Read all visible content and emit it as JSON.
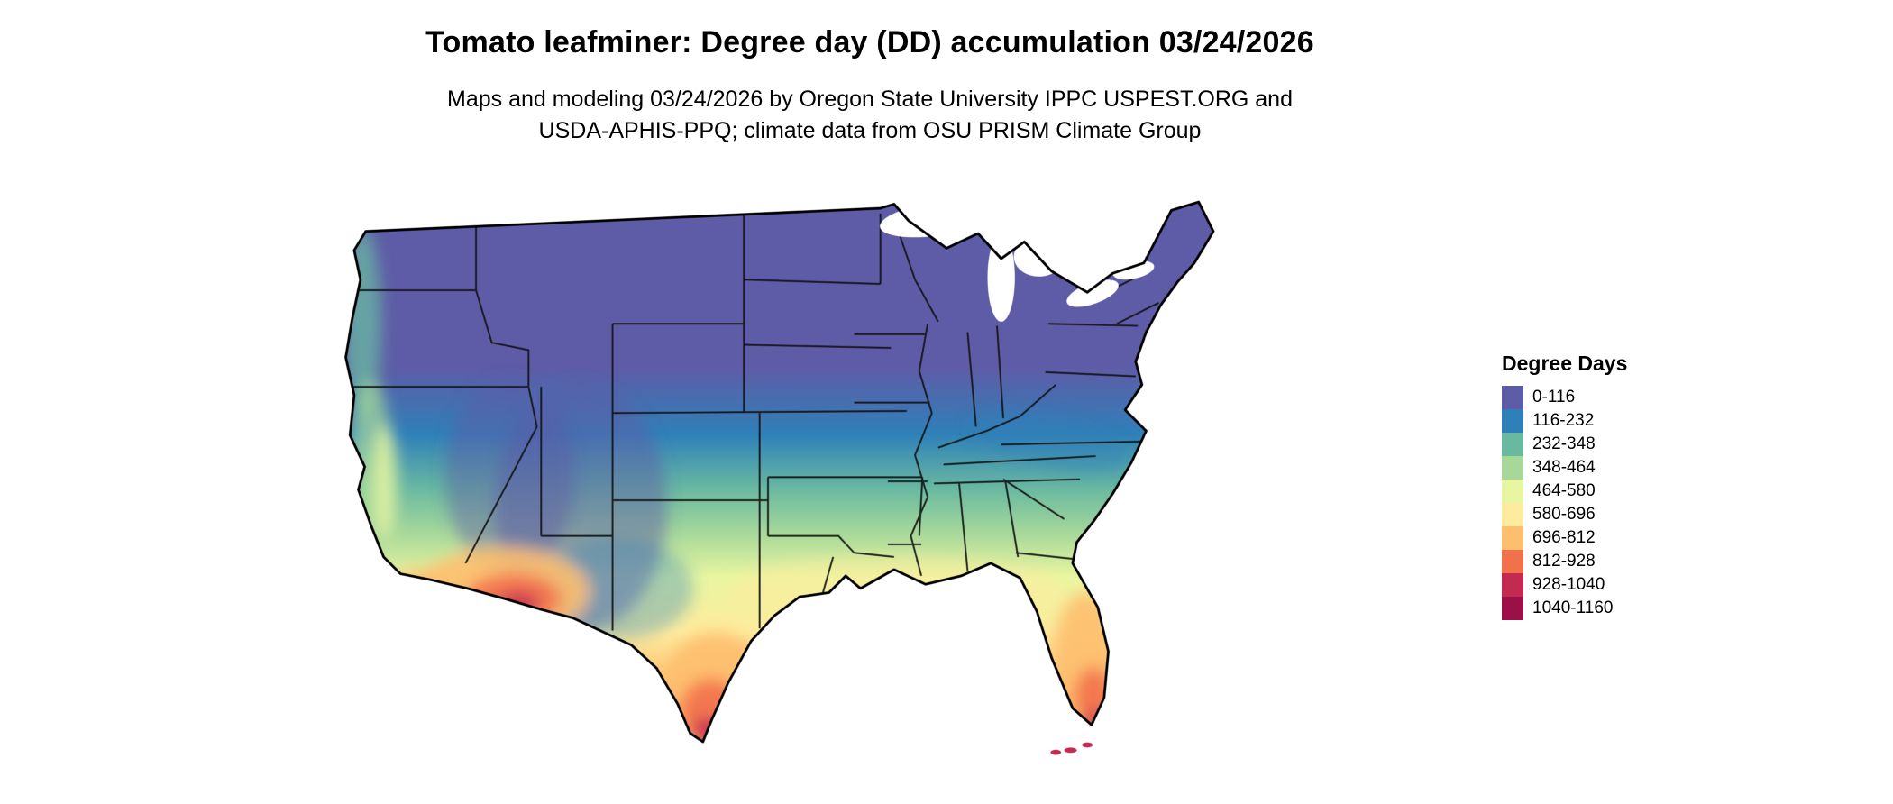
{
  "page": {
    "background": "#ffffff"
  },
  "header": {
    "title": "Tomato leafminer: Degree day (DD) accumulation 03/24/2026",
    "subtitle_line1": "Maps and modeling 03/24/2026 by Oregon State University IPPC USPEST.ORG and",
    "subtitle_line2": "USDA-APHIS-PPQ; climate data from OSU PRISM Climate Group"
  },
  "map": {
    "description": "Filled raster map of the contiguous United States shaded by accumulated degree days, with black state boundary lines on a white background. Cool purple covers the northern tier, banding through blue, teal, green and yellow toward the south, with hot orange-to-dark-red areas in southwestern Arizona, southern Texas and south Florida.",
    "region_readings": [
      {
        "region": "Northern tier (Pacific Northwest interior, northern Rockies, Upper Midwest, Northeast)",
        "approx_range": "0-116"
      },
      {
        "region": "Central Plains and Ohio Valley band",
        "approx_range": "116-348"
      },
      {
        "region": "Pacific coast and California valleys",
        "approx_range": "232-580"
      },
      {
        "region": "Southeast interior (Tennessee, Carolinas)",
        "approx_range": "232-464"
      },
      {
        "region": "Deep South and Gulf Coast",
        "approx_range": "464-696"
      },
      {
        "region": "Southwestern Arizona / southeastern California deserts",
        "approx_range": "696-1040"
      },
      {
        "region": "Southern Texas",
        "approx_range": "812-1160"
      },
      {
        "region": "Southern Florida and the Keys",
        "approx_range": "696-1160"
      }
    ]
  },
  "legend": {
    "title": "Degree Days",
    "items": [
      {
        "label": "0-116",
        "color": "#5e5ca7"
      },
      {
        "label": "116-232",
        "color": "#2f80b9"
      },
      {
        "label": "232-348",
        "color": "#69b9a1"
      },
      {
        "label": "348-464",
        "color": "#a7d89a"
      },
      {
        "label": "464-580",
        "color": "#e9f6a1"
      },
      {
        "label": "580-696",
        "color": "#feeb9d"
      },
      {
        "label": "696-812",
        "color": "#fdbe6e"
      },
      {
        "label": "812-928",
        "color": "#f2714d"
      },
      {
        "label": "928-1040",
        "color": "#c22a52"
      },
      {
        "label": "1040-1160",
        "color": "#9c1048"
      }
    ]
  }
}
